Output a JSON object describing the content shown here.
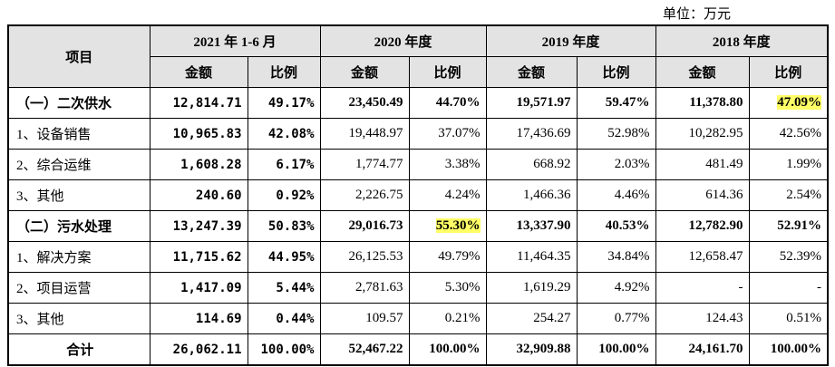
{
  "unit": "单位：万元",
  "table": {
    "header": {
      "item": "项目",
      "periods": [
        "2021 年 1-6 月",
        "2020 年度",
        "2019 年度",
        "2018 年度"
      ],
      "columns": [
        "金额",
        "比例",
        "金额",
        "比例",
        "金额",
        "比例",
        "金额",
        "比例"
      ]
    },
    "rows": [
      [
        "（一）二次供水",
        "12,814.71",
        "49.17%",
        "23,450.49",
        "44.70%",
        "19,571.97",
        "59.47%",
        "11,378.80",
        "47.09%"
      ],
      [
        "1、设备销售",
        "10,965.83",
        "42.08%",
        "19,448.97",
        "37.07%",
        "17,436.69",
        "52.98%",
        "10,282.95",
        "42.56%"
      ],
      [
        "2、综合运维",
        "1,608.28",
        "6.17%",
        "1,774.77",
        "3.38%",
        "668.92",
        "2.03%",
        "481.49",
        "1.99%"
      ],
      [
        "3、其他",
        "240.60",
        "0.92%",
        "2,226.75",
        "4.24%",
        "1,466.36",
        "4.46%",
        "614.36",
        "2.54%"
      ],
      [
        "（二）污水处理",
        "13,247.39",
        "50.83%",
        "29,016.73",
        "55.30%",
        "13,337.90",
        "40.53%",
        "12,782.90",
        "52.91%"
      ],
      [
        "1、解决方案",
        "11,715.62",
        "44.95%",
        "26,125.53",
        "49.79%",
        "11,464.35",
        "34.84%",
        "12,658.47",
        "52.39%"
      ],
      [
        "2、项目运营",
        "1,417.09",
        "5.44%",
        "2,781.63",
        "5.30%",
        "1,619.29",
        "4.92%",
        "-",
        "-"
      ],
      [
        "3、其他",
        "114.69",
        "0.44%",
        "109.57",
        "0.21%",
        "254.27",
        "0.77%",
        "124.43",
        "0.51%"
      ],
      [
        "合计",
        "26,062.11",
        "100.00%",
        "52,467.22",
        "100.00%",
        "32,909.88",
        "100.00%",
        "24,161.70",
        "100.00%"
      ]
    ]
  }
}
